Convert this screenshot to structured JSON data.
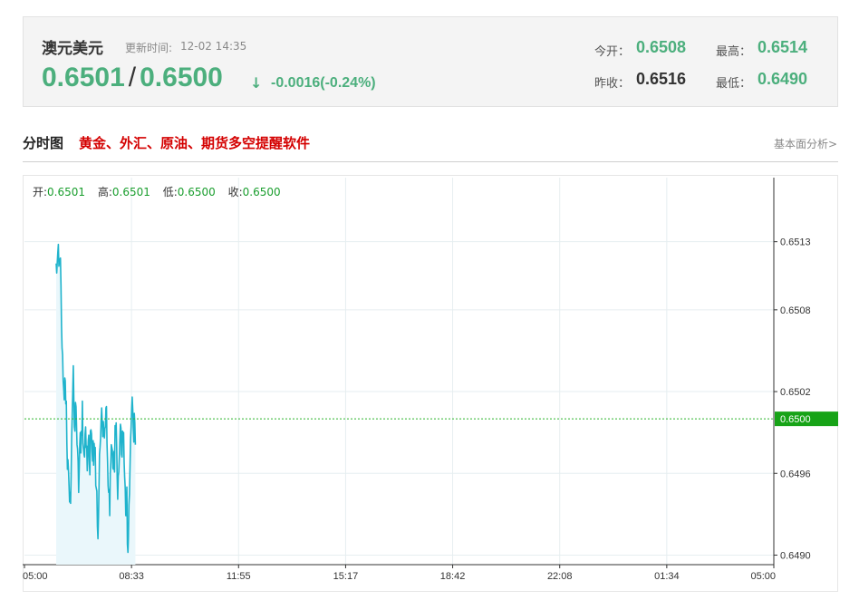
{
  "quote": {
    "name": "澳元美元",
    "updated_label": "更新时间:",
    "updated_time": "12-02 14:35",
    "bid": "0.6501",
    "separator": "/",
    "ask": "0.6500",
    "arrow": "↓",
    "change": "-0.0016(-0.24%)",
    "open_label": "今开：",
    "open_value": "0.6508",
    "high_label": "最高：",
    "high_value": "0.6514",
    "prev_close_label": "昨收：",
    "prev_close_value": "0.6516",
    "low_label": "最低：",
    "low_value": "0.6490"
  },
  "section": {
    "title": "分时图",
    "promo": "黄金、外汇、原油、期货多空提醒软件",
    "link": "基本面分析>"
  },
  "ohlc": {
    "open_label": "开:",
    "open": "0.6501",
    "high_label": "高:",
    "high": "0.6501",
    "low_label": "低:",
    "low": "0.6500",
    "close_label": "收:",
    "close": "0.6500"
  },
  "colors": {
    "line": "#1fb3cc",
    "area": "#eaf7fb",
    "grid": "#e6eef0",
    "current_line": "#2bb52b",
    "current_tag": "#17a317",
    "green": "#4caf7d",
    "promo_red": "#d40000"
  },
  "chart_data": {
    "type": "area",
    "x_ticks": [
      "05:00",
      "08:33",
      "11:55",
      "15:17",
      "18:42",
      "22:08",
      "01:34",
      "05:00"
    ],
    "y_ticks": [
      "0.6513",
      "0.6508",
      "0.6502",
      "0.6496",
      "0.6490"
    ],
    "ylim": [
      0.64893,
      0.65177
    ],
    "current_value": 0.65,
    "current_label": "0.6500",
    "series": [
      {
        "x": [
          0.0,
          0.1,
          0.2,
          0.3,
          0.4,
          0.5,
          0.6,
          0.7,
          0.8,
          0.9,
          1.0,
          1.1,
          1.2,
          1.3,
          1.4,
          1.5,
          1.6,
          1.7,
          1.8,
          1.9,
          2.0,
          2.1,
          2.2,
          2.3,
          2.4,
          2.5,
          2.6,
          2.7,
          2.8,
          2.9,
          3.0,
          3.1,
          3.2,
          3.3,
          3.4,
          3.5,
          3.6,
          3.7,
          3.8,
          3.9,
          4.0,
          4.1,
          4.2,
          4.3,
          4.4,
          4.5,
          4.6,
          4.7,
          4.8,
          4.9,
          5.0,
          5.1,
          5.2,
          5.3,
          5.4,
          5.5,
          5.6,
          5.7,
          5.8,
          5.9,
          6.0,
          6.1,
          6.2,
          6.3,
          6.4,
          6.5,
          6.6,
          6.7,
          6.8,
          6.9,
          7.0,
          7.1,
          7.2,
          7.3,
          7.4,
          7.5,
          7.6,
          7.7,
          7.8,
          7.9,
          8.0,
          8.1,
          8.2,
          8.3,
          8.4,
          8.5,
          8.6,
          8.7,
          8.8,
          8.9,
          9.0,
          9.1,
          9.2,
          9.3,
          9.4,
          9.5,
          9.6,
          9.7,
          9.8,
          9.9,
          10.0,
          10.1,
          10.2,
          10.3,
          10.4,
          10.5,
          10.6,
          10.7,
          10.8,
          10.9,
          11.0,
          11.1,
          11.2,
          11.3,
          11.4,
          11.5,
          11.6,
          11.7,
          11.8,
          11.9,
          12.0,
          12.1,
          12.2,
          12.3,
          12.4,
          12.5,
          12.6,
          12.7,
          12.8,
          12.9,
          13.0,
          13.1,
          13.2,
          13.3,
          13.4,
          13.5,
          13.6,
          13.7,
          13.8,
          13.9,
          14.0,
          14.1,
          14.2,
          14.3,
          14.4,
          14.5,
          14.6,
          14.7,
          14.8
        ],
        "values": [
          0.65114,
          0.65107,
          0.65115,
          0.65122,
          0.65128,
          0.65112,
          0.65116,
          0.65117,
          0.65118,
          0.65098,
          0.65068,
          0.65052,
          0.65047,
          0.65028,
          0.65022,
          0.65014,
          0.6503,
          0.65028,
          0.65011,
          0.65013,
          0.64982,
          0.64963,
          0.6497,
          0.64962,
          0.64951,
          0.64939,
          0.64946,
          0.64938,
          0.64958,
          0.64987,
          0.65003,
          0.6502,
          0.65039,
          0.65014,
          0.64994,
          0.64991,
          0.65012,
          0.65009,
          0.64997,
          0.64981,
          0.64978,
          0.64969,
          0.64946,
          0.64962,
          0.64981,
          0.6499,
          0.64975,
          0.64991,
          0.64988,
          0.65013,
          0.64982,
          0.64978,
          0.64974,
          0.64972,
          0.64989,
          0.64994,
          0.64979,
          0.6498,
          0.64962,
          0.64974,
          0.64984,
          0.64988,
          0.64967,
          0.64959,
          0.64991,
          0.64992,
          0.64989,
          0.64976,
          0.64969,
          0.64984,
          0.64966,
          0.64982,
          0.64975,
          0.64979,
          0.64951,
          0.64949,
          0.64947,
          0.64921,
          0.64912,
          0.64928,
          0.64951,
          0.64974,
          0.64979,
          0.64986,
          0.64999,
          0.65008,
          0.64998,
          0.64987,
          0.64998,
          0.64991,
          0.64986,
          0.64993,
          0.64994,
          0.65008,
          0.65009,
          0.64982,
          0.64969,
          0.64951,
          0.64946,
          0.64948,
          0.64929,
          0.6496,
          0.64968,
          0.64981,
          0.64979,
          0.64977,
          0.64964,
          0.64963,
          0.64976,
          0.64961,
          0.64995,
          0.6499,
          0.64997,
          0.64979,
          0.64958,
          0.64941,
          0.64958,
          0.64961,
          0.64972,
          0.64985,
          0.64996,
          0.64993,
          0.64974,
          0.64972,
          0.64991,
          0.64987,
          0.6499,
          0.64968,
          0.64957,
          0.64949,
          0.64929,
          0.64929,
          0.6495,
          0.64908,
          0.64902,
          0.64912,
          0.64937,
          0.64945,
          0.64965,
          0.64985,
          0.64994,
          0.65008,
          0.65016,
          0.65007,
          0.64993,
          0.64983,
          0.65004,
          0.64997,
          0.64981
        ]
      }
    ]
  }
}
